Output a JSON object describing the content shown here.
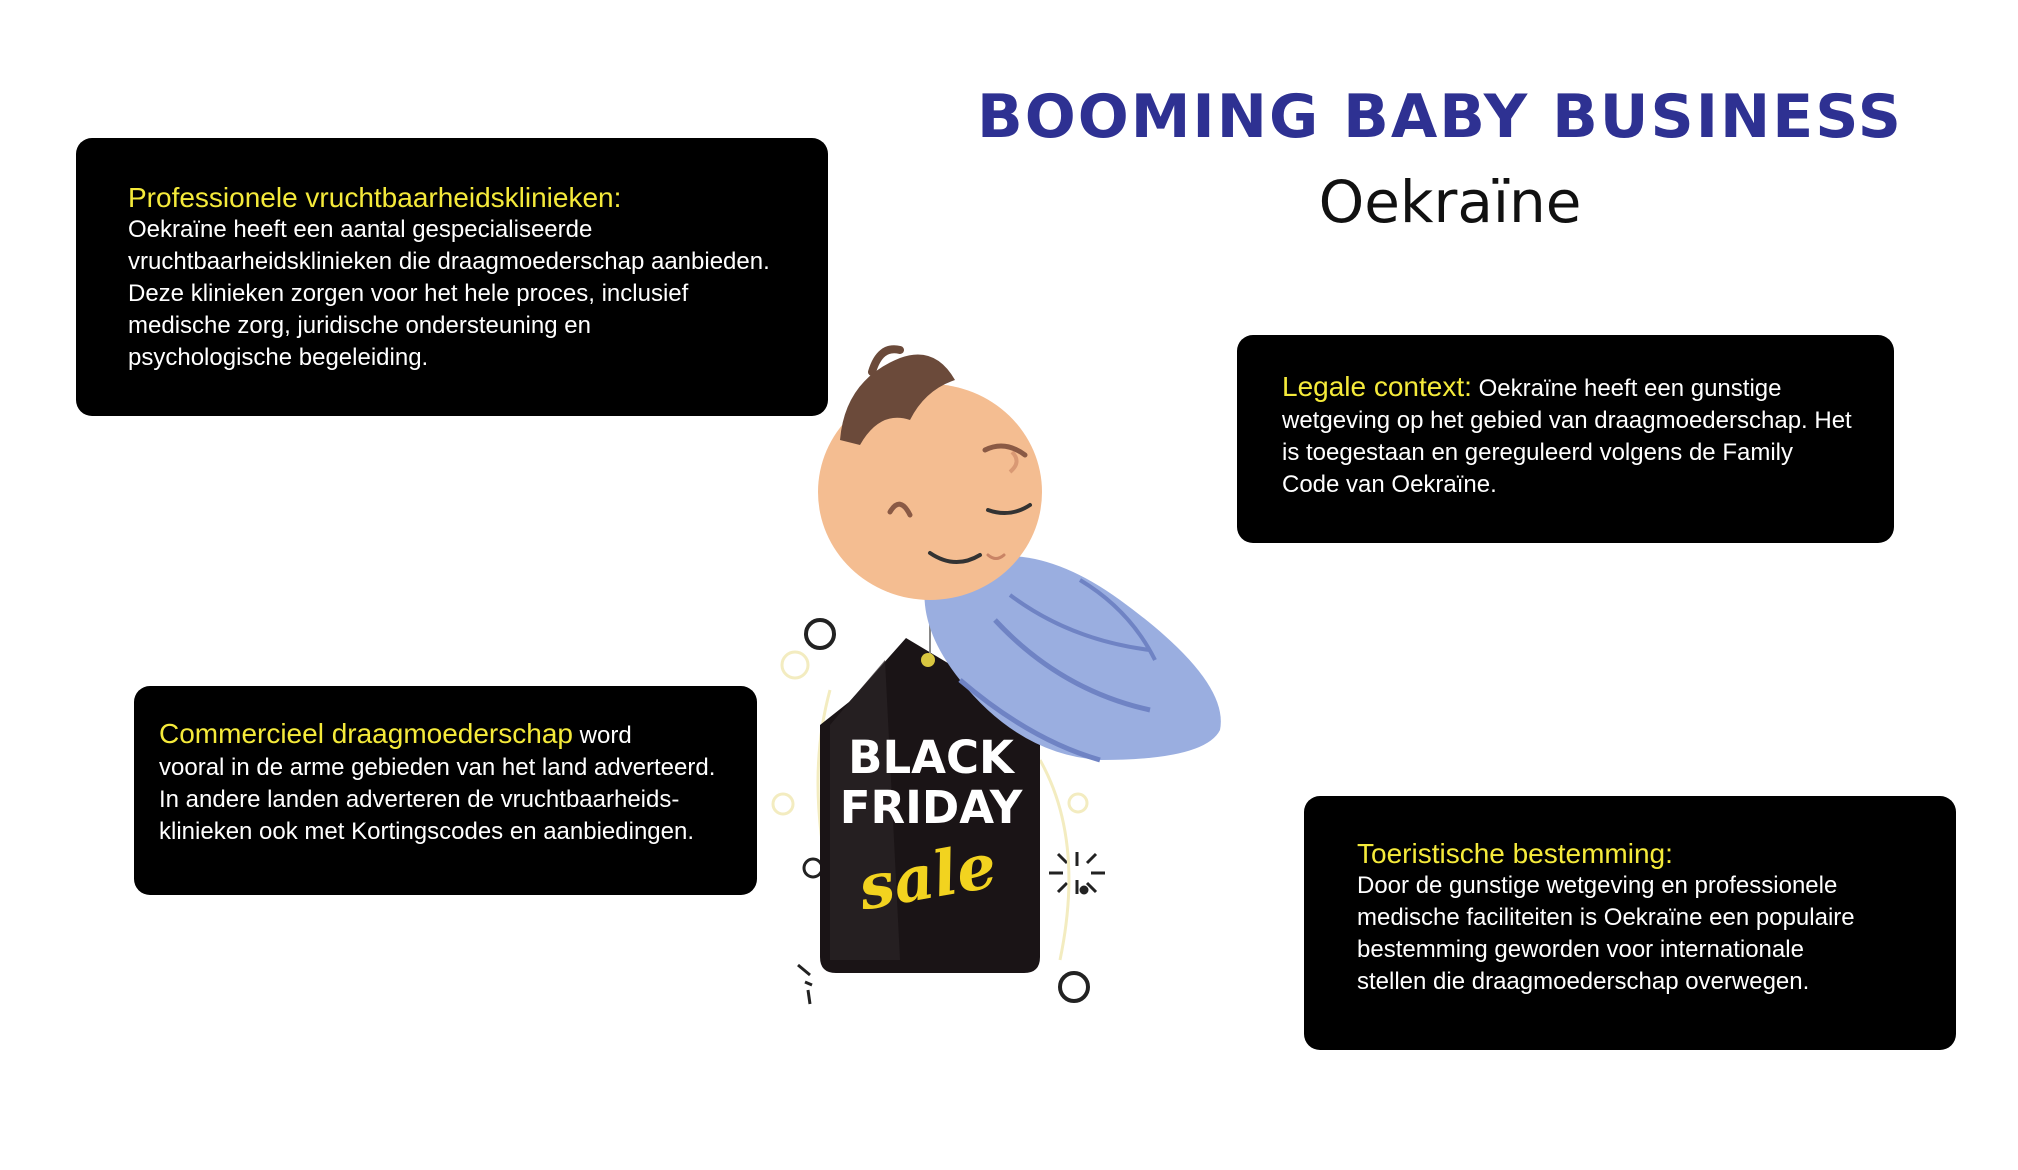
{
  "header": {
    "title": "BOOMING BABY BUSINESS",
    "subtitle": "Oekraïne"
  },
  "cards": {
    "clinics": {
      "heading": "Professionele vruchtbaarheidsklinieken:",
      "body": "Oekraïne heeft een aantal gespecialiseerde\nvruchtbaarheidsklinieken die draagmoederschap aanbieden.\nDeze klinieken zorgen voor het hele proces, inclusief\nmedische zorg, juridische ondersteuning en\npsychologische begeleiding."
    },
    "legal": {
      "heading": "Legale context:",
      "body": " Oekraïne heeft een gunstige\nwetgeving op het gebied van draagmoederschap. Het\nis toegestaan en gereguleerd volgens de Family\nCode van Oekraïne."
    },
    "commercial": {
      "heading": "Commercieel draagmoederschap",
      "body": " word\nvooral in de arme gebieden van het land adverteerd.\nIn andere landen adverteren de vruchtbaarheids-\nklinieken ook met Kortingscodes en aanbiedingen."
    },
    "tourism": {
      "heading": "Toeristische bestemming:",
      "body": "Door de gunstige wetgeving en professionele\nmedische faciliteiten is Oekraïne een populaire\nbestemming geworden voor internationale\nstellen die draagmoederschap overwegen."
    }
  },
  "tag": {
    "line1": "BLACK",
    "line2": "FRIDAY",
    "line3": "sale"
  },
  "colors": {
    "title": "#2e3192",
    "highlight": "#f5ea3a",
    "card": "#000000",
    "blanket": "#9aaee0",
    "skin": "#f4bd91",
    "hair": "#6b4a3a"
  }
}
